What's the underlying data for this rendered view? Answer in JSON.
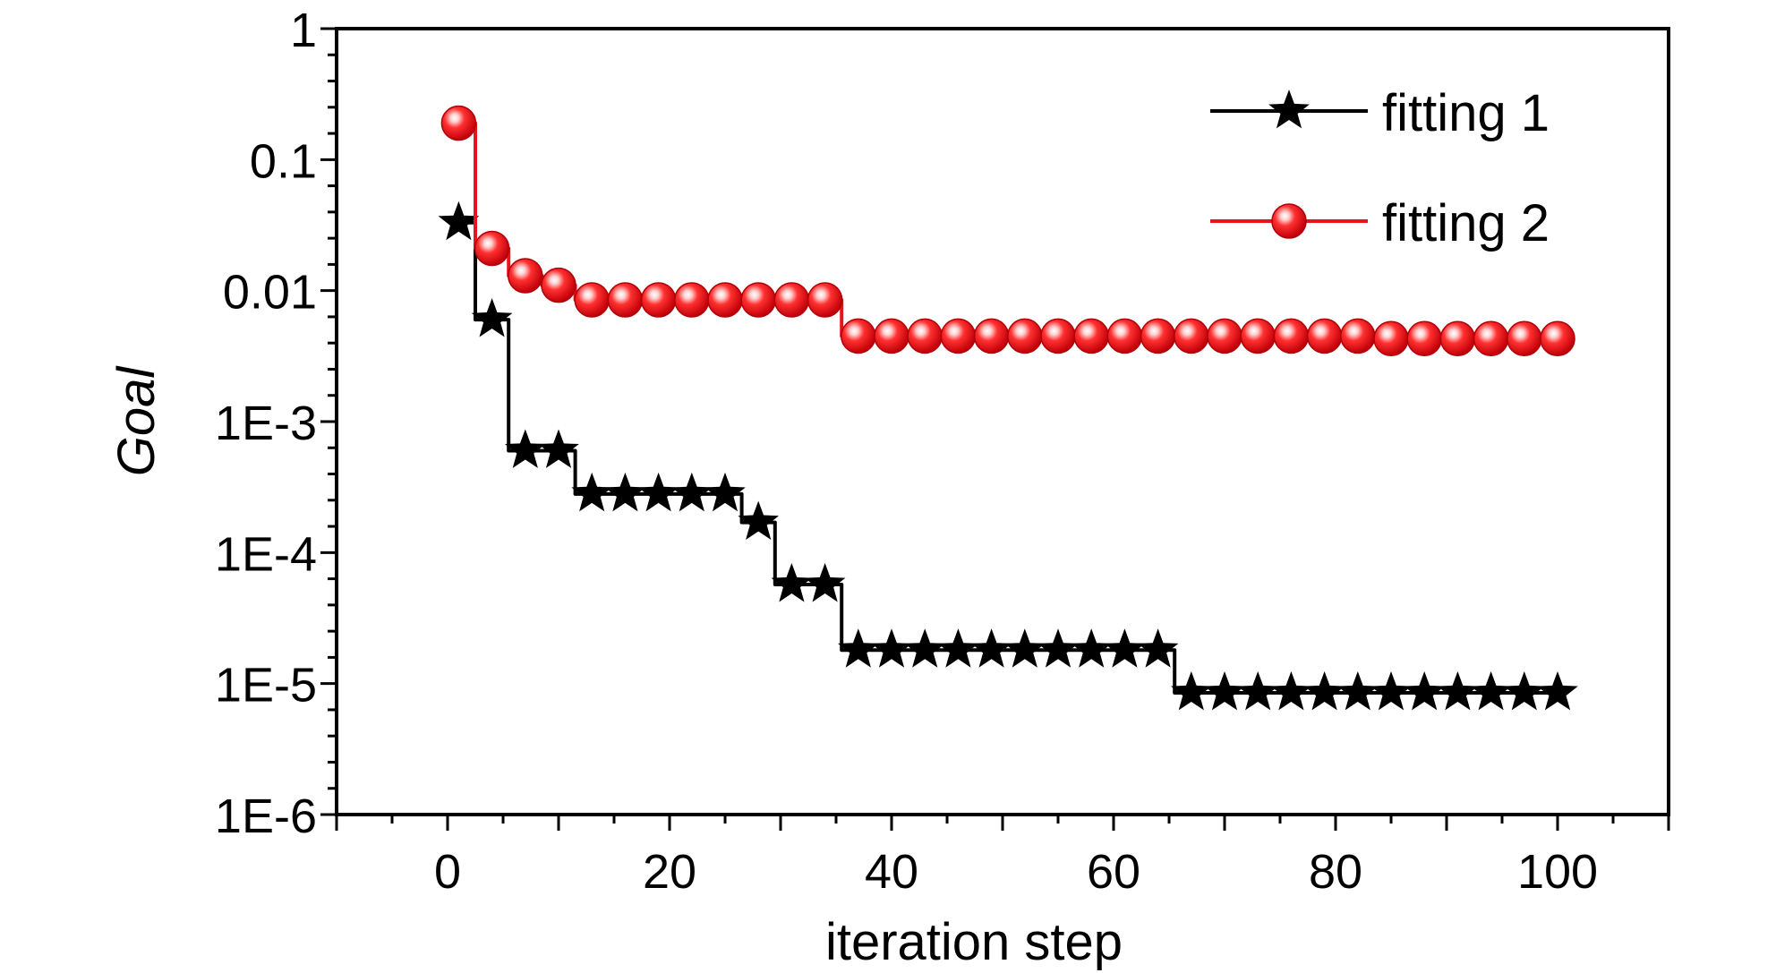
{
  "chart_data": {
    "type": "line",
    "title": "",
    "xlabel": "iteration step",
    "ylabel": "Goal",
    "xlim": [
      -10,
      110
    ],
    "ylim": [
      1e-06,
      1
    ],
    "yscale": "log",
    "grid": false,
    "legend_position": "top-right",
    "x_ticks": [
      0,
      20,
      40,
      60,
      80,
      100
    ],
    "x_tick_labels": [
      "0",
      "20",
      "40",
      "60",
      "80",
      "100"
    ],
    "y_ticks": [
      1,
      0.1,
      0.01,
      0.001,
      0.0001,
      1e-05,
      1e-06
    ],
    "y_tick_labels": [
      "1",
      "0.1",
      "0.01",
      "1E-3",
      "1E-4",
      "1E-5",
      "1E-6"
    ],
    "series": [
      {
        "name": "fitting 1",
        "color": "#000000",
        "marker": "star",
        "x": [
          1,
          4,
          7,
          10,
          13,
          16,
          19,
          22,
          25,
          28,
          31,
          34,
          37,
          40,
          43,
          46,
          49,
          52,
          55,
          58,
          61,
          64,
          67,
          70,
          73,
          76,
          79,
          82,
          85,
          88,
          91,
          94,
          97,
          100
        ],
        "y": [
          0.033,
          0.006,
          0.0006,
          0.0006,
          0.00028,
          0.00028,
          0.00028,
          0.00028,
          0.00028,
          0.00017,
          5.7e-05,
          5.7e-05,
          1.8e-05,
          1.8e-05,
          1.8e-05,
          1.8e-05,
          1.8e-05,
          1.8e-05,
          1.8e-05,
          1.8e-05,
          1.8e-05,
          1.8e-05,
          8.5e-06,
          8.5e-06,
          8.5e-06,
          8.5e-06,
          8.5e-06,
          8.5e-06,
          8.5e-06,
          8.5e-06,
          8.5e-06,
          8.5e-06,
          8.5e-06,
          8.5e-06
        ]
      },
      {
        "name": "fitting 2",
        "color": "#e8141c",
        "marker": "sphere",
        "x": [
          1,
          4,
          7,
          10,
          13,
          16,
          19,
          22,
          25,
          28,
          31,
          34,
          37,
          40,
          43,
          46,
          49,
          52,
          55,
          58,
          61,
          64,
          67,
          70,
          73,
          76,
          79,
          82,
          85,
          88,
          91,
          94,
          97,
          100
        ],
        "y": [
          0.19,
          0.021,
          0.013,
          0.011,
          0.0085,
          0.0085,
          0.0085,
          0.0085,
          0.0085,
          0.0085,
          0.0085,
          0.0085,
          0.0045,
          0.0045,
          0.0045,
          0.0045,
          0.0045,
          0.0045,
          0.0045,
          0.0045,
          0.0045,
          0.0045,
          0.0045,
          0.0045,
          0.0045,
          0.0045,
          0.0045,
          0.0045,
          0.0043,
          0.0043,
          0.0043,
          0.0043,
          0.0043,
          0.0043
        ]
      }
    ]
  }
}
